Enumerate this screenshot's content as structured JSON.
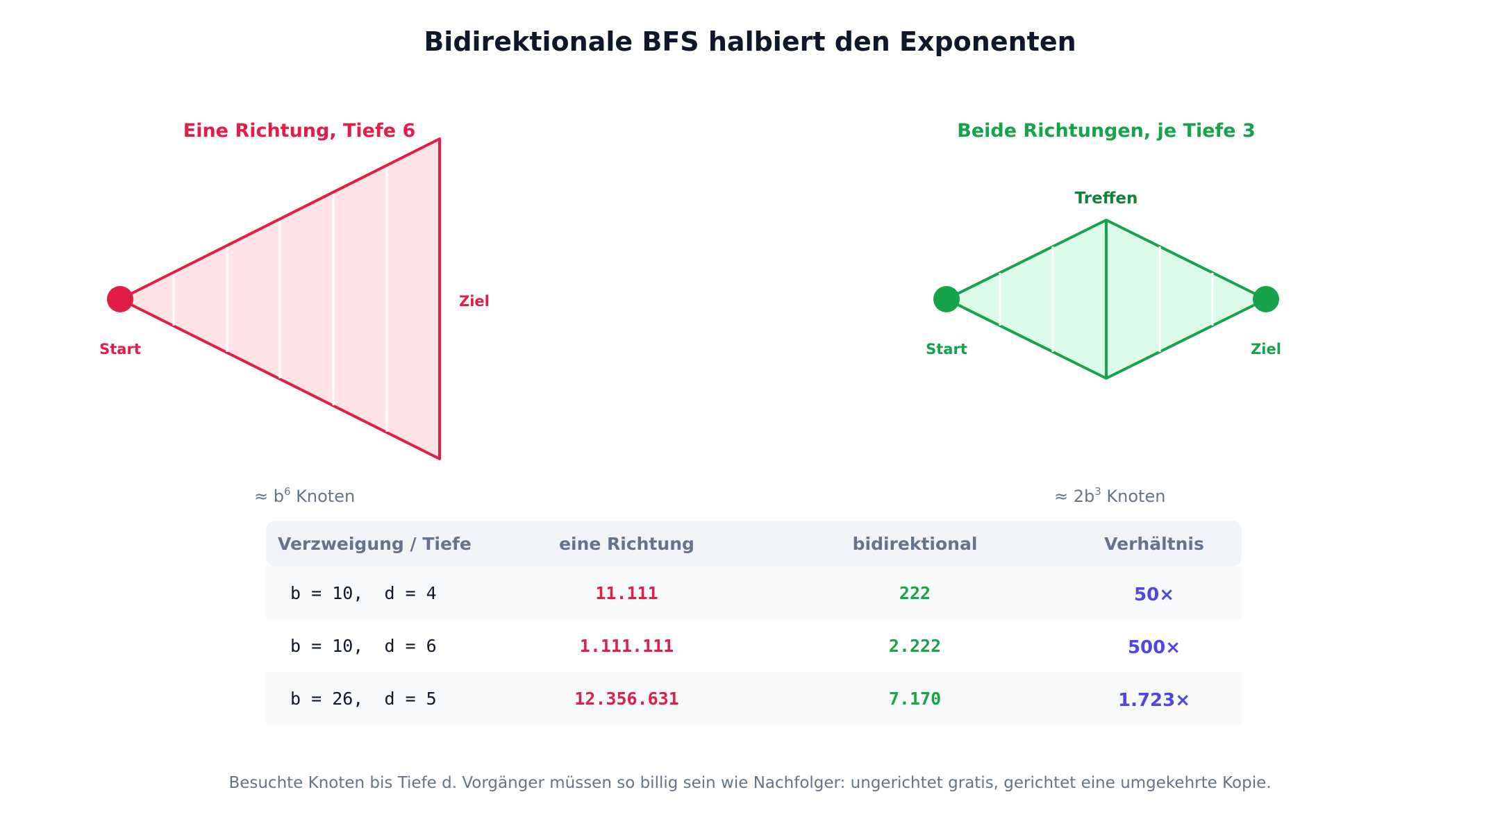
{
  "title": "Bidirektionale BFS halbiert den Exponenten",
  "left_diagram": {
    "heading": "Eine Richtung, Tiefe 6",
    "start_label": "Start",
    "goal_label": "Ziel",
    "estimate_prefix": "≈ b",
    "estimate_exp": "6",
    "estimate_suffix": " Knoten",
    "color": "#e11d48",
    "fill": "#ffe4e6"
  },
  "right_diagram": {
    "heading": "Beide Richtungen, je Tiefe 3",
    "meet_label": "Treffen",
    "start_label": "Start",
    "goal_label": "Ziel",
    "estimate_prefix": "≈ 2b",
    "estimate_exp": "3",
    "estimate_suffix": " Knoten",
    "color": "#16a34a",
    "fill": "#dcfce7"
  },
  "table": {
    "headers": [
      "Verzweigung / Tiefe",
      "eine Richtung",
      "bidirektional",
      "Verhältnis"
    ],
    "rows": [
      {
        "params": "b = 10,  d = 4",
        "one": "11.111",
        "bi": "222",
        "ratio": "50×"
      },
      {
        "params": "b = 10,  d = 6",
        "one": "1.111.111",
        "bi": "2.222",
        "ratio": "500×"
      },
      {
        "params": "b = 26,  d = 5",
        "one": "12.356.631",
        "bi": "7.170",
        "ratio": "1.723×"
      }
    ]
  },
  "footnote": "Besuchte Knoten bis Tiefe d. Vorgänger müssen so billig sein wie Nachfolger: ungerichtet gratis, gerichtet eine umgekehrte Kopie."
}
